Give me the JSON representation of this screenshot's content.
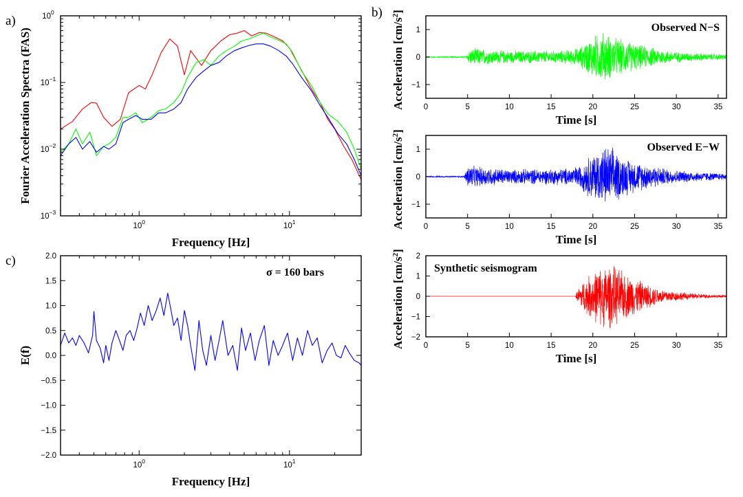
{
  "chart_data": [
    {
      "panel": "a)",
      "type": "line",
      "title": "",
      "xlabel": "Frequency [Hz]",
      "ylabel": "Fourier Acceleration Spectra (FAS)",
      "xscale": "log",
      "yscale": "log",
      "xlim": [
        0.3,
        30
      ],
      "ylim": [
        0.001,
        1
      ],
      "x_ticks": [
        {
          "v": 1,
          "b": "10",
          "e": "0"
        },
        {
          "v": 10,
          "b": "10",
          "e": "1"
        }
      ],
      "y_ticks": [
        {
          "v": 0.001,
          "b": "10",
          "e": "−3"
        },
        {
          "v": 0.01,
          "b": "10",
          "e": "−2"
        },
        {
          "v": 0.1,
          "b": "10",
          "e": "−1"
        },
        {
          "v": 1,
          "b": "10",
          "e": "0"
        }
      ],
      "grid": false,
      "series": [
        {
          "color": "#ff0000",
          "x": [
            0.3,
            0.36,
            0.42,
            0.48,
            0.52,
            0.58,
            0.66,
            0.75,
            0.85,
            1.0,
            1.1,
            1.22,
            1.4,
            1.6,
            1.8,
            2.0,
            2.2,
            2.6,
            3.0,
            3.5,
            4.0,
            4.5,
            5.0,
            5.6,
            6.3,
            7.0,
            8.0,
            9.0,
            10.0,
            11.0,
            12.5,
            14.0,
            16.0,
            18.0,
            20.0,
            23.0,
            26.0,
            30.0
          ],
          "y": [
            0.02,
            0.026,
            0.04,
            0.05,
            0.049,
            0.03,
            0.022,
            0.028,
            0.07,
            0.09,
            0.08,
            0.13,
            0.28,
            0.45,
            0.35,
            0.13,
            0.3,
            0.18,
            0.3,
            0.42,
            0.52,
            0.55,
            0.6,
            0.5,
            0.56,
            0.55,
            0.48,
            0.42,
            0.33,
            0.22,
            0.13,
            0.08,
            0.05,
            0.028,
            0.02,
            0.011,
            0.007,
            0.0035
          ]
        },
        {
          "color": "#00ff00",
          "x": [
            0.3,
            0.34,
            0.38,
            0.42,
            0.47,
            0.52,
            0.58,
            0.63,
            0.7,
            0.78,
            0.85,
            0.95,
            1.05,
            1.2,
            1.35,
            1.5,
            1.7,
            1.9,
            2.1,
            2.4,
            2.7,
            3.0,
            3.4,
            3.8,
            4.3,
            4.8,
            5.4,
            6.0,
            6.7,
            7.5,
            8.5,
            9.5,
            10.5,
            12.0,
            14.0,
            16.0,
            18.0,
            21.0,
            24.0,
            27.0,
            30.0
          ],
          "y": [
            0.009,
            0.012,
            0.02,
            0.012,
            0.018,
            0.008,
            0.011,
            0.012,
            0.015,
            0.03,
            0.03,
            0.035,
            0.025,
            0.03,
            0.038,
            0.04,
            0.05,
            0.07,
            0.12,
            0.2,
            0.22,
            0.18,
            0.25,
            0.3,
            0.35,
            0.42,
            0.45,
            0.5,
            0.55,
            0.48,
            0.43,
            0.38,
            0.28,
            0.15,
            0.09,
            0.05,
            0.034,
            0.026,
            0.018,
            0.01,
            0.005
          ]
        },
        {
          "color": "#0000ff",
          "x": [
            0.3,
            0.34,
            0.38,
            0.42,
            0.47,
            0.52,
            0.58,
            0.63,
            0.7,
            0.78,
            0.85,
            0.95,
            1.05,
            1.2,
            1.35,
            1.5,
            1.7,
            1.9,
            2.1,
            2.4,
            2.7,
            3.0,
            3.4,
            3.8,
            4.3,
            4.8,
            5.4,
            6.0,
            6.7,
            7.5,
            8.5,
            9.5,
            10.5,
            12.0,
            14.0,
            16.0,
            18.0,
            21.0,
            24.0,
            27.0,
            30.0
          ],
          "y": [
            0.008,
            0.012,
            0.015,
            0.01,
            0.013,
            0.009,
            0.011,
            0.01,
            0.012,
            0.025,
            0.028,
            0.032,
            0.028,
            0.028,
            0.035,
            0.035,
            0.04,
            0.05,
            0.08,
            0.12,
            0.15,
            0.18,
            0.2,
            0.25,
            0.3,
            0.33,
            0.36,
            0.38,
            0.38,
            0.35,
            0.3,
            0.25,
            0.19,
            0.12,
            0.075,
            0.045,
            0.03,
            0.017,
            0.012,
            0.007,
            0.004
          ]
        }
      ]
    },
    {
      "panel": "c)",
      "type": "line",
      "title": "",
      "annotation": "σ = 160 bars",
      "xlabel": "Frequency [Hz]",
      "ylabel": "E(f)",
      "xscale": "log",
      "yscale": "linear",
      "xlim": [
        0.3,
        30
      ],
      "ylim": [
        -2.0,
        2.0
      ],
      "x_ticks": [
        {
          "v": 1,
          "b": "10",
          "e": "0"
        },
        {
          "v": 10,
          "b": "10",
          "e": "1"
        }
      ],
      "y_ticks": [
        {
          "v": -2.0,
          "t": "−2.0"
        },
        {
          "v": -1.5,
          "t": "−1.5"
        },
        {
          "v": -1.0,
          "t": "−1.0"
        },
        {
          "v": -0.5,
          "t": "−0.5"
        },
        {
          "v": 0.0,
          "t": "0.0"
        },
        {
          "v": 0.5,
          "t": "0.5"
        },
        {
          "v": 1.0,
          "t": "1.0"
        },
        {
          "v": 1.5,
          "t": "1.5"
        },
        {
          "v": 2.0,
          "t": "2.0"
        }
      ],
      "grid": false,
      "series": [
        {
          "color": "#0000ff",
          "x": [
            0.3,
            0.32,
            0.34,
            0.36,
            0.38,
            0.4,
            0.43,
            0.46,
            0.49,
            0.5,
            0.52,
            0.55,
            0.58,
            0.6,
            0.63,
            0.66,
            0.7,
            0.74,
            0.78,
            0.82,
            0.87,
            0.92,
            0.97,
            1.02,
            1.08,
            1.15,
            1.22,
            1.3,
            1.38,
            1.46,
            1.55,
            1.62,
            1.7,
            1.8,
            1.9,
            2.0,
            2.1,
            2.2,
            2.35,
            2.5,
            2.65,
            2.8,
            3.0,
            3.2,
            3.4,
            3.6,
            3.9,
            4.2,
            4.5,
            4.8,
            5.1,
            5.5,
            5.9,
            6.3,
            6.8,
            7.3,
            7.8,
            8.4,
            9.0,
            9.7,
            10.5,
            11.3,
            12.2,
            13.2,
            14.2,
            15.3,
            16.5,
            17.8,
            19.2,
            20.5,
            22.0,
            23.5,
            25.0,
            27.0,
            29.0,
            30.0
          ],
          "y": [
            0.2,
            0.45,
            0.25,
            0.35,
            0.2,
            0.4,
            0.25,
            0.05,
            0.4,
            0.88,
            0.3,
            0.15,
            -0.15,
            0.2,
            -0.1,
            0.25,
            0.5,
            0.3,
            0.1,
            0.4,
            0.5,
            0.3,
            0.55,
            0.85,
            0.6,
            1.0,
            0.7,
            0.9,
            1.15,
            0.8,
            1.25,
            0.95,
            0.6,
            0.75,
            0.3,
            0.9,
            0.6,
            0.2,
            -0.3,
            0.7,
            0.1,
            -0.2,
            0.4,
            -0.1,
            0.3,
            0.7,
            0.0,
            0.2,
            -0.3,
            0.55,
            0.1,
            0.45,
            -0.1,
            0.3,
            0.6,
            -0.2,
            0.3,
            0.0,
            0.2,
            0.45,
            -0.1,
            0.35,
            0.0,
            0.5,
            0.2,
            0.35,
            -0.15,
            0.1,
            0.25,
            0.0,
            -0.05,
            0.2,
            0.05,
            -0.1,
            -0.15,
            -0.2
          ]
        }
      ]
    },
    {
      "panel": "b)",
      "type": "line",
      "annotation": "Observed N−S",
      "xlabel": "Time [s]",
      "ylabel_main": "Acceleration [cm/s",
      "ylabel_sup": "2",
      "ylabel_end": "]",
      "xlim": [
        0,
        36
      ],
      "ylim": [
        -1.5,
        1.5
      ],
      "x_ticks": [
        {
          "v": 0,
          "t": "0"
        },
        {
          "v": 5,
          "t": "5"
        },
        {
          "v": 10,
          "t": "10"
        },
        {
          "v": 15,
          "t": "15"
        },
        {
          "v": 20,
          "t": "20"
        },
        {
          "v": 25,
          "t": "25"
        },
        {
          "v": 30,
          "t": "30"
        },
        {
          "v": 35,
          "t": "35"
        }
      ],
      "y_ticks": [
        {
          "v": -1,
          "t": "−1"
        },
        {
          "v": 0,
          "t": "0"
        },
        {
          "v": 1,
          "t": "1"
        }
      ],
      "series": [
        {
          "color": "#00ff00",
          "envelope": {
            "t": [
              0,
              4.8,
              5.2,
              6,
              8,
              10,
              12,
              14,
              16,
              17.5,
              18.5,
              19.5,
              20.5,
              21.2,
              22.5,
              24,
              25.5,
              27,
              29,
              31,
              33,
              36
            ],
            "amp": [
              0.02,
              0.03,
              0.3,
              0.35,
              0.28,
              0.25,
              0.25,
              0.25,
              0.25,
              0.3,
              0.4,
              0.7,
              0.9,
              1.0,
              0.8,
              0.65,
              0.5,
              0.38,
              0.25,
              0.18,
              0.15,
              0.1
            ]
          }
        }
      ]
    },
    {
      "panel": "",
      "type": "line",
      "annotation": "Observed E−W",
      "xlabel": "Time [s]",
      "ylabel_main": "Acceleration [cm/s",
      "ylabel_sup": "2",
      "ylabel_end": "]",
      "xlim": [
        0,
        36
      ],
      "ylim": [
        -1.5,
        1.5
      ],
      "x_ticks": [
        {
          "v": 0,
          "t": "0"
        },
        {
          "v": 5,
          "t": "5"
        },
        {
          "v": 10,
          "t": "10"
        },
        {
          "v": 15,
          "t": "15"
        },
        {
          "v": 20,
          "t": "20"
        },
        {
          "v": 25,
          "t": "25"
        },
        {
          "v": 30,
          "t": "30"
        },
        {
          "v": 35,
          "t": "35"
        }
      ],
      "y_ticks": [
        {
          "v": -1,
          "t": "−1"
        },
        {
          "v": 0,
          "t": "0"
        },
        {
          "v": 1,
          "t": "1"
        }
      ],
      "series": [
        {
          "color": "#0000ff",
          "envelope": {
            "t": [
              0,
              4.6,
              5.0,
              6,
              8,
              10,
              12,
              14,
              16,
              17.5,
              18.5,
              19.5,
              20.5,
              21.5,
              22.5,
              23.5,
              25,
              27,
              29,
              31,
              33,
              36
            ],
            "amp": [
              0.02,
              0.03,
              0.45,
              0.4,
              0.35,
              0.28,
              0.3,
              0.3,
              0.32,
              0.35,
              0.45,
              0.8,
              1.0,
              1.2,
              1.1,
              0.8,
              0.6,
              0.45,
              0.3,
              0.22,
              0.18,
              0.12
            ]
          }
        }
      ]
    },
    {
      "panel": "",
      "type": "line",
      "annotation": "Synthetic seismogram",
      "xlabel": "Time [s]",
      "ylabel_main": "Acceleration [cm/s",
      "ylabel_sup": "2",
      "ylabel_end": "]",
      "xlim": [
        0,
        36
      ],
      "ylim": [
        -2,
        2
      ],
      "x_ticks": [
        {
          "v": 0,
          "t": "0"
        },
        {
          "v": 5,
          "t": "5"
        },
        {
          "v": 10,
          "t": "10"
        },
        {
          "v": 15,
          "t": "15"
        },
        {
          "v": 20,
          "t": "20"
        },
        {
          "v": 25,
          "t": "25"
        },
        {
          "v": 30,
          "t": "30"
        },
        {
          "v": 35,
          "t": "35"
        }
      ],
      "y_ticks": [
        {
          "v": -2,
          "t": "−2"
        },
        {
          "v": -1,
          "t": "−1"
        },
        {
          "v": 0,
          "t": "0"
        },
        {
          "v": 1,
          "t": "1"
        },
        {
          "v": 2,
          "t": "2"
        }
      ],
      "series": [
        {
          "color": "#ff0000",
          "envelope": {
            "t": [
              0,
              17.9,
              18.1,
              18.8,
              20,
              21,
              22,
              23,
              24,
              25,
              26,
              27,
              28,
              30,
              32,
              34,
              36
            ],
            "amp": [
              0,
              0,
              0.3,
              0.8,
              1.3,
              1.6,
              1.7,
              1.5,
              1.2,
              1.0,
              0.75,
              0.55,
              0.4,
              0.25,
              0.15,
              0.1,
              0.06
            ]
          }
        }
      ]
    }
  ]
}
